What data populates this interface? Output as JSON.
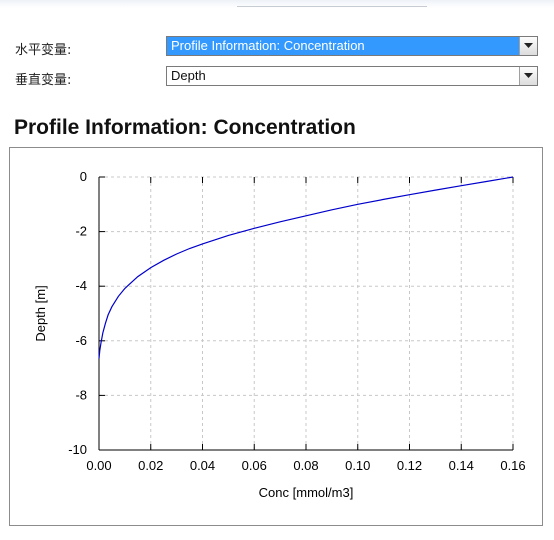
{
  "controls": {
    "horizontal_label": "水平变量:",
    "horizontal_value": "Profile Information:  Concentration",
    "vertical_label": "垂直变量:",
    "vertical_value": "Depth"
  },
  "section_title": "Profile Information:  Concentration",
  "icons": {
    "dropdown": "chevron-down-icon"
  },
  "colors": {
    "selection": "#3399ff",
    "line": "#0000cc",
    "grid": "#c8c8c8"
  },
  "chart_data": {
    "type": "line",
    "title": "",
    "xlabel": "Conc [mmol/m3]",
    "ylabel": "Depth [m]",
    "xlim": [
      0.0,
      0.16
    ],
    "ylim": [
      -10,
      0
    ],
    "xticks": [
      "0.00",
      "0.02",
      "0.04",
      "0.06",
      "0.08",
      "0.10",
      "0.12",
      "0.14",
      "0.16"
    ],
    "yticks": [
      "0",
      "-2",
      "-4",
      "-6",
      "-8",
      "-10"
    ],
    "grid": true,
    "legend": "none",
    "series": [
      {
        "x": [
          0.16,
          0.15,
          0.14,
          0.13,
          0.12,
          0.11,
          0.1,
          0.09,
          0.08,
          0.07,
          0.06,
          0.05,
          0.04,
          0.035,
          0.03,
          0.025,
          0.02,
          0.015,
          0.01,
          0.0075,
          0.005,
          0.0035,
          0.0025,
          0.0015,
          0.0008,
          0.0003,
          0.0
        ],
        "y": [
          0.0,
          -0.16,
          -0.32,
          -0.48,
          -0.65,
          -0.82,
          -1.0,
          -1.2,
          -1.42,
          -1.64,
          -1.88,
          -2.14,
          -2.45,
          -2.62,
          -2.82,
          -3.05,
          -3.32,
          -3.65,
          -4.08,
          -4.37,
          -4.75,
          -5.05,
          -5.35,
          -5.7,
          -6.05,
          -6.35,
          -6.65
        ]
      }
    ]
  }
}
